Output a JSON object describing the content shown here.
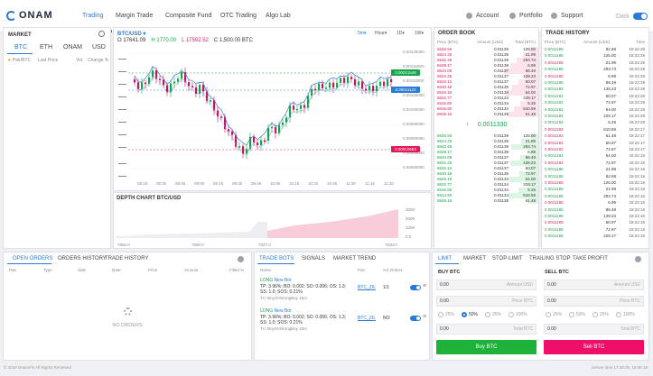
{
  "app": {
    "logo": "ONAM",
    "theme_label": "Dark"
  },
  "nav": {
    "tabs": [
      "Trading",
      "Margin Trade",
      "Composite Fund",
      "OTC Trading",
      "Algo Lab"
    ],
    "account": "Account",
    "portfolio": "Portfolio",
    "support": "Support"
  },
  "market": {
    "title": "MARKET",
    "tabs": [
      "BTC",
      "ETH",
      "ONAM",
      "USD"
    ],
    "columns": [
      "Pair/BTC",
      "Last Price",
      "Vol.",
      "Change %"
    ]
  },
  "chart": {
    "pair": "BTC/USD",
    "intervals": [
      "5m",
      "Hour",
      "1D",
      "1W"
    ],
    "ohlc": {
      "o": "O 17641.09",
      "h": "H 1770.00",
      "l": "L 17502.52",
      "c": "C 1,500.00 BTC"
    },
    "y_ticks": [
      "0.00120000",
      "0.00115000",
      "0.00110000",
      "0.00105000",
      "0.00100000",
      "0.00095000",
      "0.00090000",
      "0.00085000",
      "0.00080000"
    ],
    "x_ticks": [
      "08:15",
      "08:30",
      "08:45",
      "09:00",
      "09:15",
      "09:30",
      "09:45",
      "10:00",
      "10:15",
      "10:30",
      "10:45",
      "11:00",
      "11:15",
      "11:30"
    ],
    "price_labels": [
      {
        "text": "0.00011548",
        "color": "#16a34a"
      },
      {
        "text": "0.00011123",
        "color": "#2a7ad6"
      },
      {
        "text": "0.00010583",
        "color": "#e01a5a"
      }
    ]
  },
  "chart_data": {
    "type": "line",
    "title": "DEPTH CHART  BTC/USD",
    "x_ticks": [
      "7850.0",
      "7890.0",
      "7927.0",
      "7930.0"
    ],
    "y_ticks": [
      "300K",
      "200K",
      "100K",
      "0.0"
    ],
    "series": [
      {
        "name": "bids",
        "color": "#9aa3ad"
      },
      {
        "name": "asks",
        "color": "#f7c6d4"
      }
    ]
  },
  "orderbook": {
    "title": "ORDER BOOK",
    "columns": [
      "Price (BTC)",
      "Amount (USD)",
      "Total (BTC)"
    ],
    "last_price": "0.0011330",
    "asks": [
      [
        "6646.56",
        "0.01139",
        "125.00"
      ],
      [
        "6644.26",
        "0.01139",
        "21.99"
      ],
      [
        "6642.48",
        "0.01139",
        "293.74"
      ],
      [
        "6638.17",
        "0.01138",
        "6.99"
      ],
      [
        "6634.08",
        "0.01137",
        "88.49"
      ],
      [
        "6632.25",
        "0.01137",
        "139.23"
      ],
      [
        "6632.13",
        "0.01137",
        "60.07"
      ],
      [
        "6630.18",
        "0.01135",
        "72.97"
      ],
      [
        "6626.19",
        "0.01134",
        "54.00"
      ],
      [
        "6622.77",
        "0.01134",
        "229.17"
      ],
      [
        "6616.80",
        "0.01134",
        "5.25"
      ],
      [
        "6616.90",
        "0.01134",
        "610.59"
      ],
      [
        "6606.15",
        "0.01139",
        "61.48"
      ]
    ],
    "bids": [
      [
        "6646.56",
        "0.01139",
        "125.00"
      ],
      [
        "6644.26",
        "0.01139",
        "21.99"
      ],
      [
        "6642.48",
        "0.01139",
        "293.74"
      ],
      [
        "6638.17",
        "0.01138",
        "6.99"
      ],
      [
        "6634.08",
        "0.01137",
        "88.49"
      ],
      [
        "6632.25",
        "0.01137",
        "139.23"
      ],
      [
        "6632.13",
        "0.01137",
        "60.07"
      ],
      [
        "6630.18",
        "0.01135",
        "72.97"
      ],
      [
        "6626.19",
        "0.01134",
        "54.00"
      ],
      [
        "6622.77",
        "0.01134",
        "229.17"
      ],
      [
        "6616.80",
        "0.01134",
        "5.25"
      ],
      [
        "6614.90",
        "0.01134",
        "610.59"
      ],
      [
        "6606.15",
        "0.01139",
        "61.48"
      ]
    ]
  },
  "trade_history": {
    "title": "TRADE HISTORY",
    "columns": [
      "Price (BTC)",
      "Amount (USD)",
      "Time"
    ],
    "rows": [
      [
        "0.0011195",
        "82.68",
        "18:22:28"
      ],
      [
        "0.0011195",
        "125.00",
        "18:22:28"
      ],
      [
        "0.0011195",
        "21.99",
        "18:22:28"
      ],
      [
        "0.0011195",
        "293.74",
        "18:22:28"
      ],
      [
        "0.0011195",
        "6.99",
        "18:22:28"
      ],
      [
        "0.0011195",
        "88.49",
        "18:22:28"
      ],
      [
        "0.0011195",
        "139.23",
        "18:22:28"
      ],
      [
        "0.0011192",
        "60.07",
        "18:22:28"
      ],
      [
        "0.0011192",
        "72.97",
        "18:22:28"
      ],
      [
        "0.0011192",
        "54.00",
        "18:22:28"
      ],
      [
        "0.0011192",
        "229.17",
        "18:22:28"
      ],
      [
        "0.0011192",
        "5.25",
        "18:22:28"
      ],
      [
        "0.0011192",
        "610.59",
        "18:22:17"
      ],
      [
        "0.0011192",
        "61.48",
        "18:22:17"
      ],
      [
        "0.0011192",
        "60.97",
        "18:22:17"
      ],
      [
        "0.0011192",
        "72.97",
        "18:22:17"
      ],
      [
        "0.0011192",
        "54.00",
        "18:22:16"
      ],
      [
        "0.0011192",
        "72.97",
        "18:22:16"
      ],
      [
        "0.0011195",
        "21.99",
        "18:22:16"
      ],
      [
        "0.0011195",
        "82.68",
        "18:22:16"
      ],
      [
        "0.0011195",
        "125.00",
        "18:22:16"
      ],
      [
        "0.0011195",
        "21.99",
        "18:22:16"
      ],
      [
        "0.0011195",
        "293.74",
        "18:22:16"
      ],
      [
        "0.0011195",
        "6.99",
        "18:22:16"
      ],
      [
        "0.0011195",
        "88.49",
        "18:22:16"
      ],
      [
        "0.0011195",
        "139.23",
        "18:22:16"
      ],
      [
        "0.0011195",
        "60.97",
        "18:22:16"
      ],
      [
        "0.0011195",
        "72.97",
        "18:22:16"
      ],
      [
        "0.0011195",
        "229.17",
        "18:22:16"
      ]
    ],
    "colors": [
      "green",
      "green",
      "red",
      "green",
      "red",
      "green",
      "green",
      "green",
      "green",
      "green",
      "green",
      "green",
      "red",
      "red",
      "red",
      "red",
      "green",
      "red",
      "green",
      "green",
      "red",
      "green",
      "green",
      "red",
      "green",
      "green",
      "red",
      "green",
      "green"
    ]
  },
  "orders": {
    "tabs": [
      "OPEN ORDERS",
      "ORDERS HISTORY",
      "TRADE HISTORY"
    ],
    "columns": [
      "Pair",
      "Type",
      "Side",
      "Date",
      "Price",
      "Amount",
      "Filled %"
    ],
    "empty": "NO ORDERS"
  },
  "bots": {
    "tabs": [
      "TRADE BOTS",
      "SIGNALS",
      "MARKET TREND"
    ],
    "columns": [
      "Name",
      "Pair",
      "Act.Orders"
    ],
    "items": [
      {
        "side": "LONG",
        "name": "New Bot",
        "desc": "TP: 3.96%; BO: 0.002; SO: 0.006; OS: 1.3; SS: 1.0; SOS: 0.21%",
        "strategy": "TV: BuyOrStrongBuy 15m",
        "pair": "BTC_ZIL",
        "orders": "1/1"
      },
      {
        "side": "LONG",
        "name": "New Bot",
        "desc": "TP: 3.96%; BO: 0.002; SO: 0.006; OS: 1.3; SS: 1.0; SOS: 0.21%",
        "strategy": "TV: BuyOrStrongBuy 15m",
        "pair": "BTC_ZIL",
        "orders": "NO"
      }
    ]
  },
  "trade": {
    "tabs": [
      "LIMIT",
      "MARKET",
      "STOP-LIMIT",
      "TRAILING STOP",
      "TAKE PROFIT"
    ],
    "buy": {
      "title": "BUY BTC",
      "amount": "0.00",
      "amount_unit": "Amount USD",
      "price": "0.00",
      "price_unit": "Price BTC",
      "total": "0.00",
      "total_unit": "Total BTC",
      "button": "Buy BTC"
    },
    "sell": {
      "title": "SELL BTC",
      "amount": "0.00",
      "amount_unit": "Amount USD",
      "price": "0.00",
      "price_unit": "Price BTC",
      "total": "0.00",
      "total_unit": "Total BTC",
      "button": "Sell BTC"
    },
    "percents": [
      "25%",
      "50%",
      "25%",
      "100%"
    ]
  },
  "footer": {
    "copyright": "© 2019 OnamFin All Rights Reserved",
    "server": "Server time 17:28:39, 16.06.18"
  }
}
